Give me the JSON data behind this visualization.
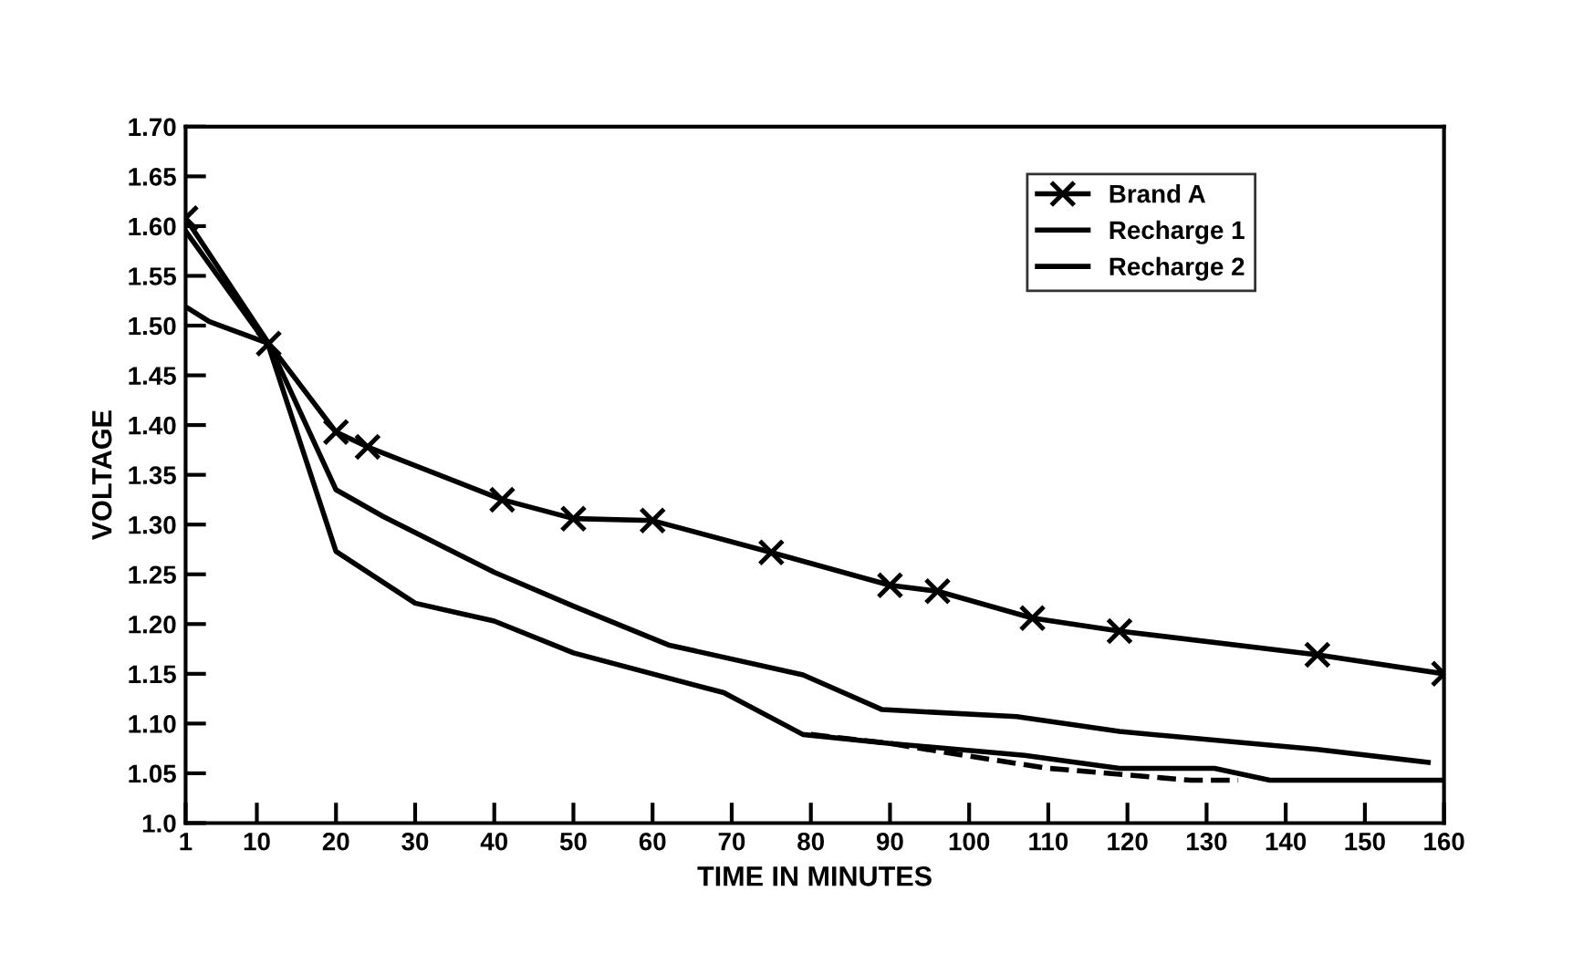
{
  "chart_data": {
    "type": "line",
    "xlabel": "TIME IN MINUTES",
    "ylabel": "VOLTAGE",
    "xlim": [
      1,
      160
    ],
    "xticks": [
      1,
      10,
      20,
      30,
      40,
      50,
      60,
      70,
      80,
      90,
      100,
      110,
      120,
      130,
      140,
      150,
      160
    ],
    "ylim": [
      1.0,
      1.7
    ],
    "yticks": [
      {
        "value": 1.0,
        "label": "1.0"
      },
      {
        "value": 1.05,
        "label": "1.05"
      },
      {
        "value": 1.1,
        "label": "1.10"
      },
      {
        "value": 1.15,
        "label": "1.15"
      },
      {
        "value": 1.2,
        "label": "1.20"
      },
      {
        "value": 1.25,
        "label": "1.25"
      },
      {
        "value": 1.3,
        "label": "1.30"
      },
      {
        "value": 1.35,
        "label": "1.35"
      },
      {
        "value": 1.4,
        "label": "1.40"
      },
      {
        "value": 1.45,
        "label": "1.45"
      },
      {
        "value": 1.5,
        "label": "1.50"
      },
      {
        "value": 1.55,
        "label": "1.55"
      },
      {
        "value": 1.6,
        "label": "1.60"
      },
      {
        "value": 1.65,
        "label": "1.65"
      },
      {
        "value": 1.7,
        "label": "1.70"
      }
    ],
    "grid": false,
    "legend": "top right",
    "series": [
      {
        "name": "Brand A",
        "color": "#000000",
        "marker": "cross",
        "line_style": "solid",
        "x": [
          1,
          11.5,
          20,
          24,
          41,
          50,
          60,
          75,
          90,
          96,
          108,
          119,
          144,
          160
        ],
        "values": [
          1.608,
          1.482,
          1.393,
          1.378,
          1.325,
          1.306,
          1.304,
          1.272,
          1.239,
          1.233,
          1.206,
          1.193,
          1.169,
          1.15
        ]
      },
      {
        "color": "#000000",
        "marker": "none",
        "line_style": "dashed",
        "x": [
          80,
          90,
          97,
          110,
          128,
          134
        ],
        "values": [
          1.089,
          1.08,
          1.071,
          1.055,
          1.043,
          1.043
        ]
      },
      {
        "name": "Recharge 1",
        "color": "#000000",
        "marker": "none",
        "line_style": "solid",
        "x": [
          1,
          4,
          11.5,
          20,
          26,
          40,
          50,
          62,
          79,
          89,
          106,
          119,
          144,
          158
        ],
        "values": [
          1.519,
          1.504,
          1.482,
          1.335,
          1.308,
          1.252,
          1.218,
          1.179,
          1.149,
          1.114,
          1.107,
          1.092,
          1.074,
          1.061
        ]
      },
      {
        "name": "Recharge 2",
        "color": "#000000",
        "marker": "none",
        "line_style": "solid",
        "x": [
          1,
          11.5,
          20,
          30,
          40,
          50,
          69,
          79,
          90,
          107,
          119,
          131,
          138,
          160
        ],
        "values": [
          1.595,
          1.479,
          1.273,
          1.221,
          1.203,
          1.171,
          1.131,
          1.089,
          1.08,
          1.068,
          1.055,
          1.055,
          1.043,
          1.043
        ]
      }
    ]
  }
}
